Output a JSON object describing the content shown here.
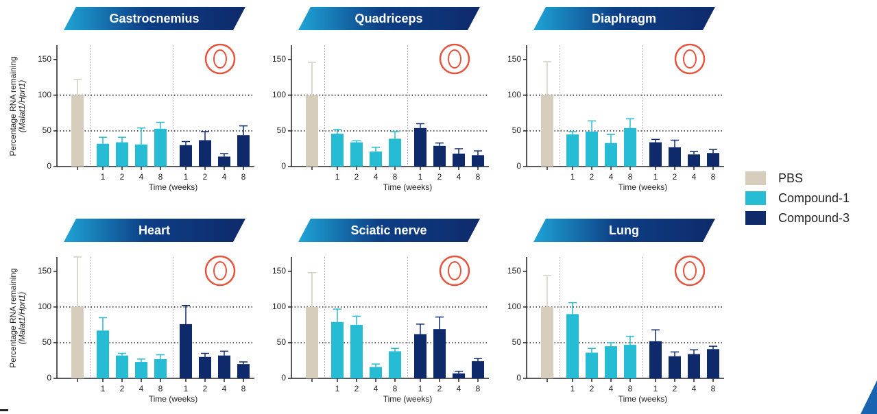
{
  "chart_data": [
    {
      "type": "bar",
      "title": "Gastrocnemius",
      "y_label": [
        "Percentage RNA remaining",
        "(Malat1/Hprt1)"
      ],
      "x_label": "Time (weeks)",
      "categories": [
        null,
        "1",
        "2",
        "4",
        "8",
        "1",
        "2",
        "4",
        "8"
      ],
      "series": [
        {
          "name": "PBS",
          "color": "#d6cdbd",
          "values": [
            100,
            null,
            null,
            null,
            null,
            null,
            null,
            null,
            null
          ],
          "errors": [
            22,
            null,
            null,
            null,
            null,
            null,
            null,
            null,
            null
          ]
        },
        {
          "name": "Compound-1",
          "color": "#25bcd4",
          "values": [
            null,
            32,
            34,
            31,
            53,
            null,
            null,
            null,
            null
          ],
          "errors": [
            null,
            9,
            7,
            23,
            9,
            null,
            null,
            null,
            null
          ]
        },
        {
          "name": "Compound-3",
          "color": "#0e2a6b",
          "values": [
            null,
            null,
            null,
            null,
            null,
            30,
            37,
            14,
            44
          ],
          "errors": [
            null,
            null,
            null,
            null,
            null,
            5,
            12,
            4,
            13
          ]
        }
      ],
      "ylim": [
        0,
        170
      ],
      "yticks": [
        0,
        50,
        100,
        150
      ],
      "ref_lines": [
        50,
        100
      ]
    },
    {
      "type": "bar",
      "title": "Quadriceps",
      "x_label": "Time (weeks)",
      "categories": [
        null,
        "1",
        "2",
        "4",
        "8",
        "1",
        "2",
        "4",
        "8"
      ],
      "series": [
        {
          "name": "PBS",
          "color": "#d6cdbd",
          "values": [
            100,
            null,
            null,
            null,
            null,
            null,
            null,
            null,
            null
          ],
          "errors": [
            46,
            null,
            null,
            null,
            null,
            null,
            null,
            null,
            null
          ]
        },
        {
          "name": "Compound-1",
          "color": "#25bcd4",
          "values": [
            null,
            46,
            34,
            21,
            39,
            null,
            null,
            null,
            null
          ],
          "errors": [
            null,
            6,
            2,
            6,
            10,
            null,
            null,
            null,
            null
          ]
        },
        {
          "name": "Compound-3",
          "color": "#0e2a6b",
          "values": [
            null,
            null,
            null,
            null,
            null,
            54,
            29,
            18,
            16
          ],
          "errors": [
            null,
            null,
            null,
            null,
            null,
            6,
            4,
            7,
            6
          ]
        }
      ],
      "ylim": [
        0,
        170
      ],
      "yticks": [
        0,
        50,
        100,
        150
      ],
      "ref_lines": [
        50,
        100
      ]
    },
    {
      "type": "bar",
      "title": "Diaphragm",
      "x_label": "Time (weeks)",
      "categories": [
        null,
        "1",
        "2",
        "4",
        "8",
        "1",
        "2",
        "4",
        "8"
      ],
      "series": [
        {
          "name": "PBS",
          "color": "#d6cdbd",
          "values": [
            100,
            null,
            null,
            null,
            null,
            null,
            null,
            null,
            null
          ],
          "errors": [
            47,
            null,
            null,
            null,
            null,
            null,
            null,
            null,
            null
          ]
        },
        {
          "name": "Compound-1",
          "color": "#25bcd4",
          "values": [
            null,
            45,
            49,
            33,
            54,
            null,
            null,
            null,
            null
          ],
          "errors": [
            null,
            4,
            15,
            12,
            13,
            null,
            null,
            null,
            null
          ]
        },
        {
          "name": "Compound-3",
          "color": "#0e2a6b",
          "values": [
            null,
            null,
            null,
            null,
            null,
            34,
            27,
            17,
            19
          ],
          "errors": [
            null,
            null,
            null,
            null,
            null,
            4,
            10,
            4,
            5
          ]
        }
      ],
      "ylim": [
        0,
        170
      ],
      "yticks": [
        0,
        50,
        100,
        150
      ],
      "ref_lines": [
        50,
        100
      ]
    },
    {
      "type": "bar",
      "title": "Heart",
      "y_label": [
        "Percentage RNA remaining",
        "(Malat1/Hprt1)"
      ],
      "x_label": "Time (weeks)",
      "categories": [
        null,
        "1",
        "2",
        "4",
        "8",
        "1",
        "2",
        "4",
        "8"
      ],
      "series": [
        {
          "name": "PBS",
          "color": "#d6cdbd",
          "values": [
            100,
            null,
            null,
            null,
            null,
            null,
            null,
            null,
            null
          ],
          "errors": [
            70,
            null,
            null,
            null,
            null,
            null,
            null,
            null,
            null
          ]
        },
        {
          "name": "Compound-1",
          "color": "#25bcd4",
          "values": [
            null,
            67,
            32,
            23,
            27,
            null,
            null,
            null,
            null
          ],
          "errors": [
            null,
            18,
            3,
            4,
            6,
            null,
            null,
            null,
            null
          ]
        },
        {
          "name": "Compound-3",
          "color": "#0e2a6b",
          "values": [
            null,
            null,
            null,
            null,
            null,
            76,
            30,
            32,
            20
          ],
          "errors": [
            null,
            null,
            null,
            null,
            null,
            26,
            5,
            6,
            3
          ]
        }
      ],
      "ylim": [
        0,
        170
      ],
      "yticks": [
        0,
        50,
        100,
        150
      ],
      "ref_lines": [
        50,
        100
      ]
    },
    {
      "type": "bar",
      "title": "Sciatic nerve",
      "x_label": "Time (weeks)",
      "categories": [
        null,
        "1",
        "2",
        "4",
        "8",
        "1",
        "2",
        "4",
        "8"
      ],
      "series": [
        {
          "name": "PBS",
          "color": "#d6cdbd",
          "values": [
            100,
            null,
            null,
            null,
            null,
            null,
            null,
            null,
            null
          ],
          "errors": [
            48,
            null,
            null,
            null,
            null,
            null,
            null,
            null,
            null
          ]
        },
        {
          "name": "Compound-1",
          "color": "#25bcd4",
          "values": [
            null,
            79,
            75,
            16,
            38,
            null,
            null,
            null,
            null
          ],
          "errors": [
            null,
            18,
            12,
            4,
            4,
            null,
            null,
            null,
            null
          ]
        },
        {
          "name": "Compound-3",
          "color": "#0e2a6b",
          "values": [
            null,
            null,
            null,
            null,
            null,
            62,
            69,
            7,
            24
          ],
          "errors": [
            null,
            null,
            null,
            null,
            null,
            14,
            17,
            3,
            4
          ]
        }
      ],
      "ylim": [
        0,
        170
      ],
      "yticks": [
        0,
        50,
        100,
        150
      ],
      "ref_lines": [
        50,
        100
      ]
    },
    {
      "type": "bar",
      "title": "Lung",
      "x_label": "Time (weeks)",
      "categories": [
        null,
        "1",
        "2",
        "4",
        "8",
        "1",
        "2",
        "4",
        "8"
      ],
      "series": [
        {
          "name": "PBS",
          "color": "#d6cdbd",
          "values": [
            100,
            null,
            null,
            null,
            null,
            null,
            null,
            null,
            null
          ],
          "errors": [
            44,
            null,
            null,
            null,
            null,
            null,
            null,
            null,
            null
          ]
        },
        {
          "name": "Compound-1",
          "color": "#25bcd4",
          "values": [
            null,
            90,
            36,
            45,
            47,
            null,
            null,
            null,
            null
          ],
          "errors": [
            null,
            16,
            6,
            5,
            12,
            null,
            null,
            null,
            null
          ]
        },
        {
          "name": "Compound-3",
          "color": "#0e2a6b",
          "values": [
            null,
            null,
            null,
            null,
            null,
            52,
            31,
            34,
            41
          ],
          "errors": [
            null,
            null,
            null,
            null,
            null,
            16,
            6,
            6,
            4
          ]
        }
      ],
      "ylim": [
        0,
        170
      ],
      "yticks": [
        0,
        50,
        100,
        150
      ],
      "ref_lines": [
        50,
        100
      ]
    }
  ]
}
